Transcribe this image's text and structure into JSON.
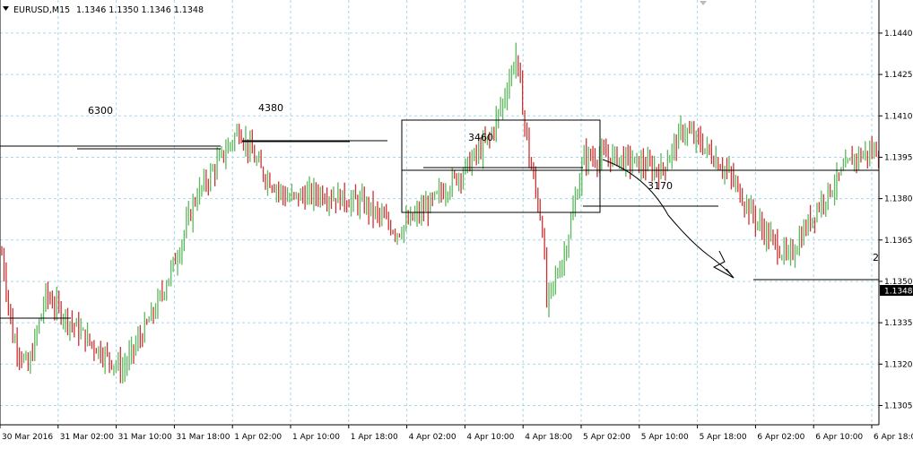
{
  "header": {
    "menu_icon": "triangle-down-icon",
    "symbol": "EURUSD,M15",
    "quote": "1.1346 1.1350 1.1346 1.1348"
  },
  "chart_data": {
    "type": "candlestick",
    "symbol": "EURUSD",
    "timeframe": "M15",
    "ylim": [
      1.1298,
      1.1452
    ],
    "grid": true,
    "grid_style": "dashed",
    "y_ticks": [
      "1.1440",
      "1.1425",
      "1.1410",
      "1.1395",
      "1.1380",
      "1.1365",
      "1.1350",
      "1.1335",
      "1.1320",
      "1.1305"
    ],
    "current_price": "1.1348",
    "x_ticks": [
      "30 Mar 2016",
      "31 Mar 02:00",
      "31 Mar 10:00",
      "31 Mar 18:00",
      "1 Apr 02:00",
      "1 Apr 10:00",
      "1 Apr 18:00",
      "4 Apr 02:00",
      "4 Apr 10:00",
      "4 Apr 18:00",
      "5 Apr 02:00",
      "5 Apr 10:00",
      "5 Apr 18:00",
      "6 Apr 02:00",
      "6 Apr 10:00",
      "6 Apr 18:00"
    ],
    "bull_color": "#5cb85c",
    "bear_color": "#cc3333",
    "anchors": [
      [
        0,
        1.136
      ],
      [
        5,
        1.133
      ],
      [
        12,
        1.1318
      ],
      [
        20,
        1.1345
      ],
      [
        28,
        1.1338
      ],
      [
        40,
        1.1328
      ],
      [
        55,
        1.1318
      ],
      [
        70,
        1.134
      ],
      [
        80,
        1.136
      ],
      [
        88,
        1.138
      ],
      [
        100,
        1.1395
      ],
      [
        108,
        1.1405
      ],
      [
        118,
        1.139
      ],
      [
        130,
        1.138
      ],
      [
        145,
        1.1382
      ],
      [
        165,
        1.1378
      ],
      [
        180,
        1.1368
      ],
      [
        195,
        1.1378
      ],
      [
        212,
        1.1392
      ],
      [
        222,
        1.1402
      ],
      [
        228,
        1.1415
      ],
      [
        234,
        1.1432
      ],
      [
        240,
        1.1395
      ],
      [
        246,
        1.137
      ],
      [
        248,
        1.1342
      ],
      [
        256,
        1.136
      ],
      [
        265,
        1.1395
      ],
      [
        280,
        1.1395
      ],
      [
        300,
        1.139
      ],
      [
        310,
        1.1405
      ],
      [
        318,
        1.14
      ],
      [
        330,
        1.139
      ],
      [
        345,
        1.137
      ],
      [
        358,
        1.1358
      ],
      [
        372,
        1.1378
      ],
      [
        388,
        1.1395
      ],
      [
        400,
        1.1398
      ],
      [
        412,
        1.139
      ],
      [
        420,
        1.1392
      ],
      [
        430,
        1.1405
      ],
      [
        440,
        1.139
      ],
      [
        460,
        1.1375
      ],
      [
        470,
        1.136
      ],
      [
        478,
        1.1345
      ],
      [
        490,
        1.1355
      ],
      [
        505,
        1.1372
      ],
      [
        518,
        1.1378
      ],
      [
        528,
        1.1395
      ],
      [
        538,
        1.139
      ],
      [
        548,
        1.1375
      ],
      [
        560,
        1.1378
      ],
      [
        572,
        1.1385
      ],
      [
        580,
        1.137
      ],
      [
        588,
        1.1355
      ],
      [
        598,
        1.1355
      ],
      [
        608,
        1.1375
      ],
      [
        615,
        1.1395
      ],
      [
        624,
        1.1388
      ],
      [
        638,
        1.1385
      ],
      [
        652,
        1.138
      ],
      [
        660,
        1.1373
      ],
      [
        668,
        1.137
      ],
      [
        676,
        1.1366
      ],
      [
        690,
        1.1358
      ],
      [
        700,
        1.1348
      ],
      [
        710,
        1.1345
      ],
      [
        718,
        1.134
      ],
      [
        728,
        1.133
      ],
      [
        737,
        1.1335
      ],
      [
        746,
        1.1342
      ],
      [
        756,
        1.1358
      ],
      [
        766,
        1.1375
      ],
      [
        772,
        1.1392
      ],
      [
        780,
        1.1397
      ]
    ],
    "annotations": {
      "labels": [
        "6300",
        "4380",
        "3460",
        "3170",
        "2"
      ],
      "hlines": [
        1.14,
        1.1399,
        1.1402,
        1.1393,
        1.1392,
        1.1378,
        1.1351,
        1.1341
      ],
      "rectangle": {
        "from": "4 Apr 00:00",
        "to": "5 Apr 02:00",
        "high": 1.141,
        "low": 1.1378
      }
    }
  }
}
